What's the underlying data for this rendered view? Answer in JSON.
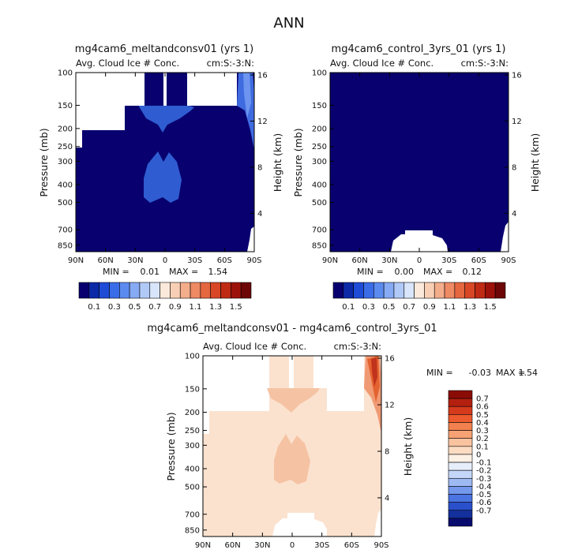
{
  "page_title": "ANN",
  "colors": {
    "white": "#ffffff",
    "navy": "#08006f",
    "blue_mid": "#2f5cd1",
    "blue_lite": "#5a85ee",
    "peach": "#fbe4d3",
    "peach2": "#f6c4a6",
    "orange": "#e8642a",
    "red": "#c0331c"
  },
  "chart_data": [
    {
      "type": "heatmap",
      "title": "mg4cam6_meltandconsv01 (yrs 1)",
      "subtitle_left": "Avg. Cloud Ice # Conc.",
      "subtitle_right": "cm:S:-3:N:",
      "xlabel": "",
      "ylabel": "Pressure (mb)",
      "y2label": "Height (km)",
      "x_ticks": [
        "90N",
        "60N",
        "30N",
        "0",
        "30S",
        "60S",
        "90S"
      ],
      "y_ticks": [
        "100",
        "150",
        "200",
        "250",
        "300",
        "400",
        "500",
        "700",
        "850"
      ],
      "y_tick_values": [
        100,
        150,
        200,
        250,
        300,
        400,
        500,
        700,
        850
      ],
      "y2_ticks": [
        "16",
        "12",
        "8",
        "4"
      ],
      "ylim": [
        100,
        1000
      ],
      "xlim": [
        -90,
        90
      ],
      "min_label": "MIN =",
      "min_value": "0.01",
      "max_label": "MAX =",
      "max_value": "1.54",
      "colorbar": "sequential"
    },
    {
      "type": "heatmap",
      "title": "mg4cam6_control_3yrs_01 (yrs 1)",
      "subtitle_left": "Avg. Cloud Ice # Conc.",
      "subtitle_right": "cm:S:-3:N:",
      "xlabel": "",
      "ylabel": "Pressure (mb)",
      "y2label": "Height (km)",
      "x_ticks": [
        "90N",
        "60N",
        "30N",
        "0",
        "30S",
        "60S",
        "90S"
      ],
      "y_ticks": [
        "100",
        "150",
        "200",
        "250",
        "300",
        "400",
        "500",
        "700",
        "850"
      ],
      "y_tick_values": [
        100,
        150,
        200,
        250,
        300,
        400,
        500,
        700,
        850
      ],
      "y2_ticks": [
        "16",
        "12",
        "8",
        "4"
      ],
      "ylim": [
        100,
        1000
      ],
      "xlim": [
        -90,
        90
      ],
      "min_label": "MIN =",
      "min_value": "0.00",
      "max_label": "MAX =",
      "max_value": "0.12",
      "colorbar": "sequential"
    },
    {
      "type": "heatmap",
      "title": "mg4cam6_meltandconsv01 - mg4cam6_control_3yrs_01",
      "subtitle_left": "Avg. Cloud Ice # Conc.",
      "subtitle_right": "cm:S:-3:N:",
      "xlabel": "",
      "ylabel": "Pressure (mb)",
      "y2label": "Height (km)",
      "x_ticks": [
        "90N",
        "60N",
        "30N",
        "0",
        "30S",
        "60S",
        "90S"
      ],
      "y_ticks": [
        "100",
        "150",
        "200",
        "250",
        "300",
        "400",
        "500",
        "700",
        "850"
      ],
      "y_tick_values": [
        100,
        150,
        200,
        250,
        300,
        400,
        500,
        700,
        850
      ],
      "y2_ticks": [
        "16",
        "12",
        "8",
        "4"
      ],
      "ylim": [
        100,
        1000
      ],
      "xlim": [
        -90,
        90
      ],
      "min_label": "MIN =",
      "min_value": "-0.03",
      "max_label": "MAX =",
      "max_value": "1.54",
      "colorbar": "diverging"
    }
  ],
  "colorbar_sequential": {
    "labels": [
      "0.1",
      "0.3",
      "0.5",
      "0.7",
      "0.9",
      "1.1",
      "1.3",
      "1.5"
    ],
    "colors": [
      "#08006f",
      "#0c2aa8",
      "#1e4cd6",
      "#3a6ce8",
      "#5c8bf0",
      "#86aaf4",
      "#b1c9f7",
      "#d8e5fa",
      "#fbeadb",
      "#f8cfb4",
      "#f3ad8b",
      "#ee8a64",
      "#e5673f",
      "#d84726",
      "#bf2a14",
      "#9c1109",
      "#6d0606"
    ]
  },
  "colorbar_diverging": {
    "labels": [
      "0.7",
      "0.6",
      "0.5",
      "0.4",
      "0.3",
      "0.2",
      "0.1",
      "0",
      "-0.1",
      "-0.2",
      "-0.3",
      "-0.4",
      "-0.5",
      "-0.6",
      "-0.7"
    ],
    "colors": [
      "#8b0c05",
      "#b3200f",
      "#d63a1d",
      "#ec5a2e",
      "#f3814f",
      "#f7a274",
      "#f9c39f",
      "#fbdcc3",
      "#fdf0e5",
      "#e6eefc",
      "#c4d7f8",
      "#9dbaf3",
      "#7498ec",
      "#4a74e2",
      "#2a50cc",
      "#13309c",
      "#080c6e"
    ]
  }
}
